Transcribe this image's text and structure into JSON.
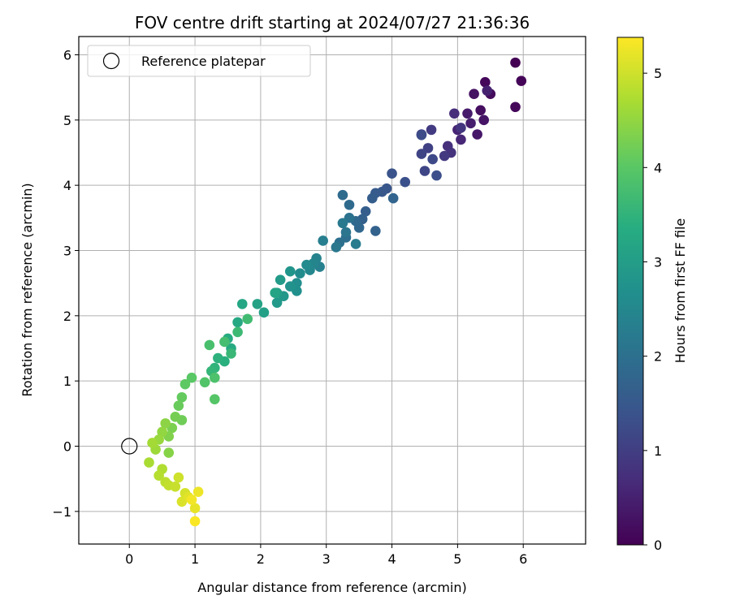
{
  "chart_data": {
    "type": "scatter",
    "title": "FOV centre drift starting at 2024/07/27 21:36:36",
    "xlabel": "Angular distance from reference (arcmin)",
    "ylabel": "Rotation from reference (arcmin)",
    "xlim": [
      -0.77,
      6.95
    ],
    "ylim": [
      -1.5,
      6.28
    ],
    "xticks": [
      0,
      1,
      2,
      3,
      4,
      5,
      6
    ],
    "yticks": [
      -1,
      0,
      1,
      2,
      3,
      4,
      5,
      6
    ],
    "ytick_labels": [
      "−1",
      "0",
      "1",
      "2",
      "3",
      "4",
      "5",
      "6"
    ],
    "grid": true,
    "legend": {
      "position": "top-left",
      "entries": [
        "Reference platepar"
      ]
    },
    "reference_point": {
      "x": 0,
      "y": 0
    },
    "colorbar": {
      "label": "Hours from first FF file",
      "range": [
        0,
        5.38
      ],
      "ticks": [
        0,
        1,
        2,
        3,
        4,
        5
      ],
      "colormap": "viridis"
    },
    "series": [
      {
        "color_values": [
          0.0,
          0.05,
          0.08,
          0.1,
          0.15,
          0.2,
          0.25,
          0.3,
          0.35,
          0.4,
          0.45,
          0.5,
          0.55,
          0.6,
          0.7,
          0.75,
          0.8,
          0.85,
          0.9,
          0.95,
          1.0,
          1.05,
          1.1,
          1.15,
          1.2,
          1.25,
          1.3,
          1.35,
          1.4,
          1.45,
          1.5,
          1.55,
          1.6,
          1.62,
          1.65,
          1.7,
          1.75,
          1.8,
          1.85,
          1.88,
          1.9,
          1.95,
          2.0,
          2.05,
          2.1,
          2.15,
          2.2,
          2.25,
          2.3,
          2.35,
          2.4,
          2.45,
          2.5,
          2.55,
          2.6,
          2.65,
          2.7,
          2.75,
          2.8,
          2.85,
          2.9,
          2.95,
          3.0,
          3.05,
          3.1,
          3.15,
          3.2,
          3.25,
          3.3,
          3.35,
          3.4,
          3.45,
          3.5,
          3.55,
          3.6,
          3.65,
          3.7,
          3.75,
          3.8,
          3.85,
          3.9,
          3.95,
          4.0,
          4.05,
          4.1,
          4.15,
          4.2,
          4.25,
          4.3,
          4.35,
          4.4,
          4.45,
          4.5,
          4.55,
          4.6,
          4.65,
          4.7,
          4.75,
          4.8,
          4.85,
          4.9,
          4.95,
          5.0,
          5.05,
          5.1,
          5.15,
          5.2,
          5.25,
          5.3,
          5.35
        ],
        "x": [
          5.88,
          5.97,
          5.88,
          5.42,
          5.5,
          5.35,
          5.25,
          5.4,
          5.3,
          5.15,
          5.2,
          5.45,
          5.0,
          5.05,
          4.95,
          4.85,
          4.9,
          5.05,
          4.8,
          4.6,
          4.45,
          4.55,
          4.45,
          4.5,
          4.62,
          4.45,
          4.68,
          4.2,
          4.0,
          3.92,
          3.85,
          3.75,
          3.7,
          3.6,
          3.55,
          3.75,
          4.02,
          3.5,
          3.45,
          3.35,
          3.25,
          3.3,
          3.2,
          3.35,
          3.3,
          3.15,
          3.25,
          3.45,
          2.95,
          2.9,
          2.85,
          2.8,
          2.75,
          2.7,
          2.6,
          2.55,
          2.55,
          2.45,
          2.45,
          2.35,
          2.25,
          2.3,
          2.25,
          2.05,
          1.95,
          2.22,
          1.72,
          1.65,
          1.55,
          1.5,
          1.45,
          1.35,
          1.3,
          1.25,
          1.55,
          1.65,
          1.8,
          1.45,
          1.22,
          1.3,
          1.15,
          1.3,
          0.95,
          0.85,
          0.8,
          0.75,
          0.8,
          0.7,
          0.65,
          0.6,
          0.6,
          0.55,
          0.5,
          0.45,
          0.4,
          0.35,
          0.3,
          0.5,
          0.45,
          0.55,
          0.6,
          0.7,
          0.75,
          0.85,
          0.8,
          0.9,
          1.0,
          1.05,
          0.95,
          1.0
        ],
        "y": [
          5.88,
          5.6,
          5.2,
          5.58,
          5.4,
          5.15,
          5.4,
          5.0,
          4.78,
          5.1,
          4.95,
          5.45,
          4.85,
          4.7,
          5.1,
          4.6,
          4.5,
          4.88,
          4.45,
          4.85,
          4.78,
          4.57,
          4.48,
          4.22,
          4.4,
          4.77,
          4.15,
          4.05,
          4.18,
          3.95,
          3.9,
          3.88,
          3.8,
          3.6,
          3.48,
          3.3,
          3.8,
          3.35,
          3.45,
          3.7,
          3.85,
          3.2,
          3.12,
          3.5,
          3.28,
          3.05,
          3.42,
          3.1,
          3.15,
          2.75,
          2.88,
          2.8,
          2.7,
          2.78,
          2.65,
          2.5,
          2.38,
          2.45,
          2.68,
          2.3,
          2.2,
          2.55,
          2.35,
          2.05,
          2.18,
          2.35,
          2.18,
          1.9,
          1.5,
          1.65,
          1.3,
          1.35,
          1.2,
          1.15,
          1.42,
          1.75,
          1.95,
          1.6,
          1.55,
          1.05,
          0.98,
          0.72,
          1.05,
          0.95,
          0.75,
          0.62,
          0.4,
          0.45,
          0.28,
          0.15,
          -0.1,
          0.35,
          0.22,
          0.1,
          -0.05,
          0.05,
          -0.25,
          -0.35,
          -0.45,
          -0.55,
          -0.6,
          -0.62,
          -0.48,
          -0.72,
          -0.85,
          -0.78,
          -0.95,
          -0.7,
          -0.82,
          -1.15
        ]
      }
    ]
  }
}
